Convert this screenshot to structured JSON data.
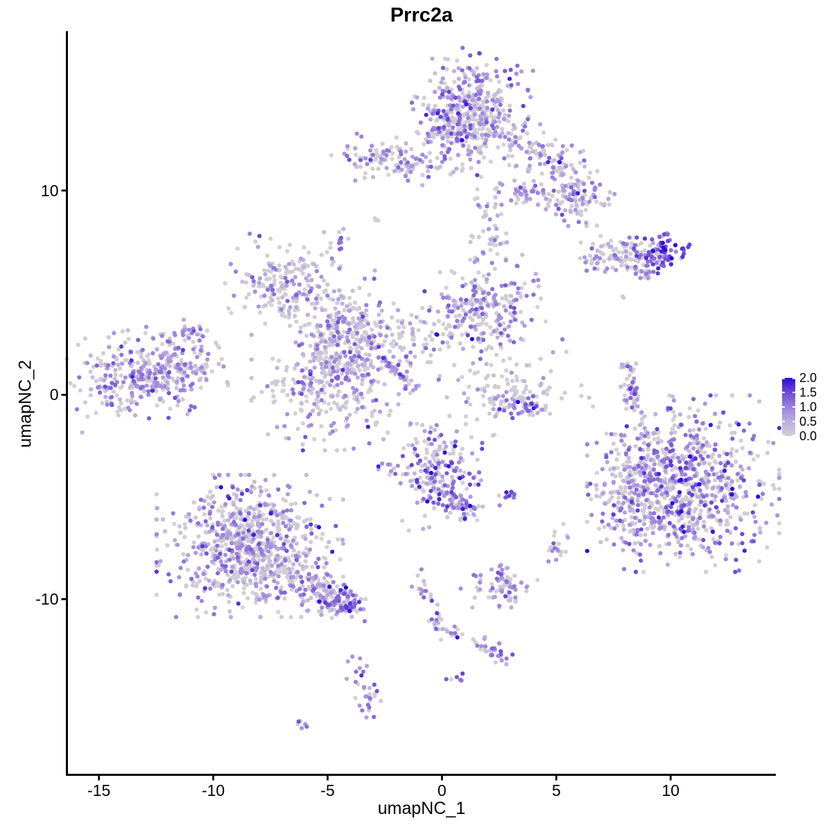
{
  "title": "Prrc2a",
  "axes": {
    "xlabel": "umapNC_1",
    "ylabel": "umapNC_2",
    "x_ticks": [
      -15,
      -10,
      -5,
      0,
      5,
      10
    ],
    "y_ticks": [
      10,
      0,
      -10
    ],
    "xlim": [
      -16.4,
      14.6
    ],
    "ylim": [
      -18.6,
      17.8
    ],
    "axis_color": "#000000"
  },
  "legend": {
    "tick_labels": [
      "2.0",
      "1.5",
      "1.0",
      "0.5",
      "0.0"
    ],
    "tick_values": [
      2.0,
      1.5,
      1.0,
      0.5,
      0.0
    ],
    "vmin": 0.0,
    "vmax": 2.0
  },
  "chart_data": {
    "type": "scatter",
    "title": "Prrc2a",
    "xlabel": "umapNC_1",
    "ylabel": "umapNC_2",
    "xlim": [
      -16.4,
      14.6
    ],
    "ylim": [
      -18.6,
      17.8
    ],
    "grid": false,
    "legend_position": "right",
    "point_radius_px": 3.1,
    "color_scale": {
      "low_label": "0.0",
      "high_label": "2.0",
      "stops": [
        {
          "t": 0.0,
          "color": "#D3D3D3"
        },
        {
          "t": 0.25,
          "color": "#BCADE2"
        },
        {
          "t": 0.5,
          "color": "#9B82DC"
        },
        {
          "t": 0.75,
          "color": "#6F4BD3"
        },
        {
          "t": 1.0,
          "color": "#2A09E0"
        }
      ]
    },
    "clusters": [
      {
        "name": "top-main",
        "shape": "gauss",
        "n": 480,
        "cx": 1.15,
        "cy": 13.7,
        "sx": 1.05,
        "sy": 1.25,
        "rot": -20,
        "zero_frac": 0.45,
        "emean": 0.85,
        "esd": 0.45
      },
      {
        "name": "top-left-wing",
        "shape": "gauss",
        "n": 110,
        "cx": -2.1,
        "cy": 11.45,
        "sx": 1.15,
        "sy": 0.5,
        "rot": -8,
        "zero_frac": 0.42,
        "emean": 0.8,
        "esd": 0.4
      },
      {
        "name": "top-right-arm",
        "shape": "gauss",
        "n": 120,
        "cx": 4.4,
        "cy": 11.6,
        "sx": 1.15,
        "sy": 0.55,
        "rot": -33,
        "zero_frac": 0.45,
        "emean": 0.8,
        "esd": 0.45
      },
      {
        "name": "top-hook-blob",
        "shape": "gauss",
        "n": 110,
        "cx": 5.5,
        "cy": 9.6,
        "sx": 0.85,
        "sy": 0.6,
        "rot": -20,
        "zero_frac": 0.5,
        "emean": 0.75,
        "esd": 0.4
      },
      {
        "name": "top-small-bar",
        "shape": "gauss",
        "n": 22,
        "cx": 3.4,
        "cy": 9.9,
        "sx": 0.45,
        "sy": 0.22,
        "rot": 0,
        "zero_frac": 0.4,
        "emean": 0.9,
        "esd": 0.4
      },
      {
        "name": "lone-dot-upper",
        "shape": "gauss",
        "n": 3,
        "cx": -2.85,
        "cy": 8.55,
        "sx": 0.1,
        "sy": 0.1,
        "rot": 0,
        "zero_frac": 0.3,
        "emean": 1.0,
        "esd": 0.3
      },
      {
        "name": "tiny-cluster-upper-left",
        "shape": "gauss",
        "n": 14,
        "cx": -4.55,
        "cy": 7.4,
        "sx": 0.26,
        "sy": 0.3,
        "rot": 0,
        "zero_frac": 0.3,
        "emean": 0.95,
        "esd": 0.4
      },
      {
        "name": "mid-left-blob",
        "shape": "gauss",
        "n": 230,
        "cx": -6.35,
        "cy": 5.1,
        "sx": 1.3,
        "sy": 0.9,
        "rot": -15,
        "zero_frac": 0.5,
        "emean": 0.75,
        "esd": 0.4
      },
      {
        "name": "mid-connector",
        "shape": "gauss",
        "n": 70,
        "cx": -3.9,
        "cy": 3.4,
        "sx": 0.85,
        "sy": 0.65,
        "rot": -30,
        "zero_frac": 0.55,
        "emean": 0.6,
        "esd": 0.35
      },
      {
        "name": "mid-ring",
        "shape": "ring",
        "n": 170,
        "cx": -4.3,
        "cy": 2.3,
        "r": 1.05,
        "jit": 0.33,
        "zero_frac": 0.5,
        "emean": 0.7,
        "esd": 0.4
      },
      {
        "name": "mid-lower-blob",
        "shape": "gauss",
        "n": 300,
        "cx": -4.85,
        "cy": 0.4,
        "sx": 1.45,
        "sy": 1.3,
        "rot": 0,
        "zero_frac": 0.5,
        "emean": 0.7,
        "esd": 0.4
      },
      {
        "name": "diag-streak",
        "shape": "line",
        "n": 45,
        "cx": -2.6,
        "cy": 1.8,
        "x2": -1.15,
        "y2": 0.35,
        "w": 0.16,
        "zero_frac": 0.35,
        "emean": 0.85,
        "esd": 0.45
      },
      {
        "name": "mid-sparse",
        "shape": "gauss",
        "n": 70,
        "cx": -1.6,
        "cy": 3.0,
        "sx": 1.15,
        "sy": 0.75,
        "rot": -25,
        "zero_frac": 0.6,
        "emean": 0.55,
        "esd": 0.35
      },
      {
        "name": "v-blob",
        "shape": "gauss",
        "n": 270,
        "cx": 1.7,
        "cy": 4.1,
        "sx": 1.2,
        "sy": 1.05,
        "rot": 20,
        "zero_frac": 0.48,
        "emean": 0.8,
        "esd": 0.45
      },
      {
        "name": "vert-connector",
        "shape": "line",
        "n": 55,
        "cx": 1.8,
        "cy": 7.0,
        "x2": 2.2,
        "y2": 9.9,
        "w": 0.5,
        "zero_frac": 0.5,
        "emean": 0.7,
        "esd": 0.4
      },
      {
        "name": "smile-top",
        "shape": "gauss",
        "n": 90,
        "cx": 3.1,
        "cy": 0.3,
        "sx": 1.25,
        "sy": 0.75,
        "rot": 0,
        "zero_frac": 0.75,
        "emean": 0.45,
        "esd": 0.3
      },
      {
        "name": "smile-bottom",
        "shape": "line",
        "n": 60,
        "cx": 2.0,
        "cy": -0.3,
        "x2": 4.3,
        "y2": -0.6,
        "w": 0.28,
        "zero_frac": 0.3,
        "emean": 0.9,
        "esd": 0.4
      },
      {
        "name": "thin-vert-right",
        "shape": "line",
        "n": 45,
        "cx": 8.15,
        "cy": 1.3,
        "x2": 8.5,
        "y2": -1.0,
        "w": 0.18,
        "zero_frac": 0.5,
        "emean": 0.7,
        "esd": 0.4
      },
      {
        "name": "fish-body",
        "shape": "line",
        "n": 90,
        "cx": 6.4,
        "cy": 6.75,
        "x2": 8.8,
        "y2": 7.05,
        "w": 0.4,
        "zero_frac": 0.5,
        "emean": 0.75,
        "esd": 0.4
      },
      {
        "name": "fish-head",
        "shape": "gauss",
        "n": 85,
        "cx": 9.55,
        "cy": 6.95,
        "sx": 0.55,
        "sy": 0.42,
        "rot": -10,
        "zero_frac": 0.15,
        "emean": 1.3,
        "esd": 0.4
      },
      {
        "name": "fish-tail",
        "shape": "line",
        "n": 20,
        "cx": 8.3,
        "cy": 6.15,
        "x2": 9.2,
        "y2": 5.85,
        "w": 0.18,
        "zero_frac": 0.4,
        "emean": 0.8,
        "esd": 0.4
      },
      {
        "name": "fish-lone-dot",
        "shape": "gauss",
        "n": 2,
        "cx": 8.0,
        "cy": 4.75,
        "sx": 0.08,
        "sy": 0.08,
        "rot": 0,
        "zero_frac": 0.9,
        "emean": 0.3,
        "esd": 0.2
      },
      {
        "name": "right-big",
        "shape": "gauss",
        "n": 850,
        "cx": 10.55,
        "cy": -4.35,
        "sx": 1.75,
        "sy": 1.8,
        "rot": 0,
        "zero_frac": 0.42,
        "emean": 0.9,
        "esd": 0.5
      },
      {
        "name": "right-big-left-arm",
        "shape": "gauss",
        "n": 120,
        "cx": 8.3,
        "cy": -5.0,
        "sx": 0.6,
        "sy": 1.25,
        "rot": 10,
        "zero_frac": 0.55,
        "emean": 0.7,
        "esd": 0.4
      },
      {
        "name": "bottom-left-big",
        "shape": "gauss",
        "n": 780,
        "cx": -8.4,
        "cy": -7.4,
        "sx": 1.7,
        "sy": 1.45,
        "rot": 0,
        "zero_frac": 0.48,
        "emean": 0.75,
        "esd": 0.4
      },
      {
        "name": "bottom-left-tail",
        "shape": "line",
        "n": 160,
        "cx": -6.3,
        "cy": -9.2,
        "x2": -4.0,
        "y2": -10.4,
        "w": 0.5,
        "zero_frac": 0.35,
        "emean": 0.85,
        "esd": 0.45
      },
      {
        "name": "bottom-left-tail-end",
        "shape": "gauss",
        "n": 30,
        "cx": -4.15,
        "cy": -10.3,
        "sx": 0.3,
        "sy": 0.25,
        "rot": -20,
        "zero_frac": 0.2,
        "emean": 1.15,
        "esd": 0.4
      },
      {
        "name": "center-bottom",
        "shape": "gauss",
        "n": 230,
        "cx": -0.25,
        "cy": -3.8,
        "sx": 1.0,
        "sy": 1.05,
        "rot": 15,
        "zero_frac": 0.4,
        "emean": 0.95,
        "esd": 0.5
      },
      {
        "name": "center-bottom-tail",
        "shape": "line",
        "n": 45,
        "cx": 0.3,
        "cy": -4.9,
        "x2": 1.25,
        "y2": -5.9,
        "w": 0.28,
        "zero_frac": 0.35,
        "emean": 0.9,
        "esd": 0.45
      },
      {
        "name": "dark-pair",
        "shape": "gauss",
        "n": 10,
        "cx": 2.9,
        "cy": -4.9,
        "sx": 0.2,
        "sy": 0.1,
        "rot": 0,
        "zero_frac": 0.1,
        "emean": 1.3,
        "esd": 0.35
      },
      {
        "name": "gray-dot",
        "shape": "gauss",
        "n": 2,
        "cx": 2.2,
        "cy": -2.0,
        "sx": 0.07,
        "sy": 0.07,
        "rot": 0,
        "zero_frac": 1.0,
        "emean": 0.1,
        "esd": 0.05
      },
      {
        "name": "small-right-mid",
        "shape": "gauss",
        "n": 18,
        "cx": 5.1,
        "cy": -7.2,
        "sx": 0.22,
        "sy": 0.5,
        "rot": 0,
        "zero_frac": 0.45,
        "emean": 0.9,
        "esd": 0.4
      },
      {
        "name": "bottom-blob",
        "shape": "gauss",
        "n": 65,
        "cx": 2.5,
        "cy": -9.45,
        "sx": 0.7,
        "sy": 0.4,
        "rot": 0,
        "zero_frac": 0.45,
        "emean": 0.85,
        "esd": 0.4
      },
      {
        "name": "bottom-blob-nub",
        "shape": "gauss",
        "n": 8,
        "cx": 2.55,
        "cy": -8.6,
        "sx": 0.13,
        "sy": 0.28,
        "rot": 0,
        "zero_frac": 0.3,
        "emean": 1.0,
        "esd": 0.35
      },
      {
        "name": "chain",
        "shape": "line",
        "n": 30,
        "cx": -1.0,
        "cy": -9.0,
        "x2": 0.1,
        "y2": -11.9,
        "w": 0.2,
        "zero_frac": 0.45,
        "emean": 0.9,
        "esd": 0.45
      },
      {
        "name": "chain-branch",
        "shape": "line",
        "n": 12,
        "cx": 0.15,
        "cy": -11.5,
        "x2": 1.05,
        "y2": -11.8,
        "w": 0.14,
        "zero_frac": 0.4,
        "emean": 0.9,
        "esd": 0.4
      },
      {
        "name": "lower-streak",
        "shape": "line",
        "n": 28,
        "cx": 1.55,
        "cy": -12.1,
        "x2": 2.75,
        "y2": -13.0,
        "w": 0.2,
        "zero_frac": 0.35,
        "emean": 0.9,
        "esd": 0.4
      },
      {
        "name": "lone-dark-blob",
        "shape": "gauss",
        "n": 6,
        "cx": 0.55,
        "cy": -13.95,
        "sx": 0.15,
        "sy": 0.22,
        "rot": 0,
        "zero_frac": 0.1,
        "emean": 1.2,
        "esd": 0.3
      },
      {
        "name": "small-vert-cluster",
        "shape": "gauss",
        "n": 34,
        "cx": -3.35,
        "cy": -14.4,
        "sx": 0.32,
        "sy": 0.7,
        "rot": 15,
        "zero_frac": 0.3,
        "emean": 0.9,
        "esd": 0.4
      },
      {
        "name": "tiny-pair",
        "shape": "gauss",
        "n": 7,
        "cx": -6.05,
        "cy": -16.15,
        "sx": 0.22,
        "sy": 0.15,
        "rot": -20,
        "zero_frac": 0.25,
        "emean": 0.95,
        "esd": 0.35
      },
      {
        "name": "far-left",
        "shape": "gauss",
        "n": 380,
        "cx": -12.9,
        "cy": 1.0,
        "sx": 1.4,
        "sy": 0.95,
        "rot": 12,
        "zero_frac": 0.45,
        "emean": 0.8,
        "esd": 0.4
      },
      {
        "name": "far-left-arm",
        "shape": "line",
        "n": 25,
        "cx": -11.9,
        "cy": 2.5,
        "x2": -10.6,
        "y2": 3.3,
        "w": 0.22,
        "zero_frac": 0.4,
        "emean": 0.8,
        "esd": 0.4
      },
      {
        "name": "far-left-streak",
        "shape": "line",
        "n": 22,
        "cx": -11.7,
        "cy": 1.5,
        "x2": -10.2,
        "y2": 0.9,
        "w": 0.18,
        "zero_frac": 0.5,
        "emean": 0.7,
        "esd": 0.4
      }
    ]
  }
}
